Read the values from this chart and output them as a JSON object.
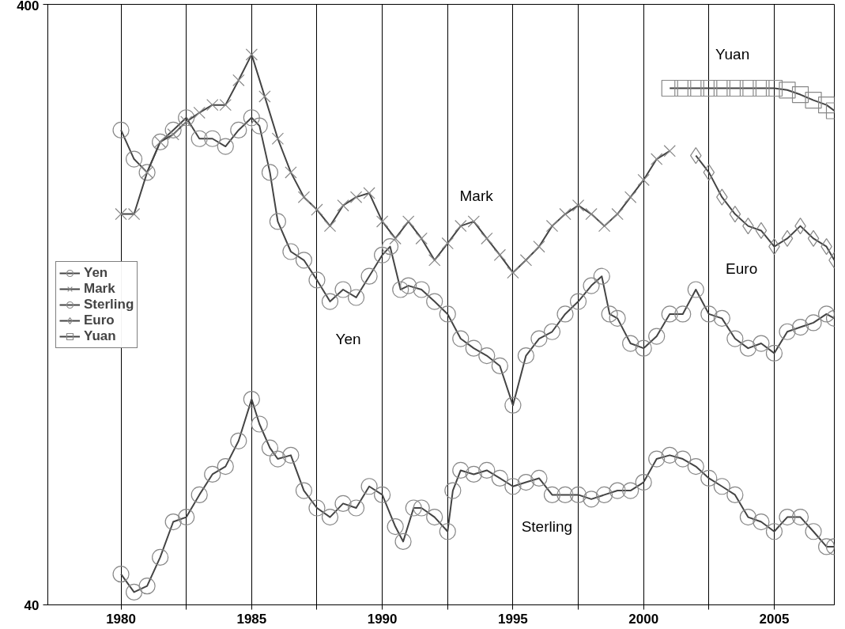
{
  "chart_data": {
    "type": "line",
    "xlim": [
      1977.2,
      2007.3
    ],
    "ylim": [
      40,
      400
    ],
    "log": true,
    "grid": "x",
    "legend": "left",
    "line_style": "solid",
    "xticks": [
      1980,
      {
        "value": 1982.5,
        "label": null
      },
      1985,
      {
        "value": 1987.5,
        "label": null
      },
      1990,
      {
        "value": 1992.5,
        "label": null
      },
      1995,
      {
        "value": 1997.5,
        "label": null
      },
      2000,
      {
        "value": 2002.5,
        "label": null
      },
      2005
    ],
    "yticks": [
      40,
      400
    ],
    "series": [
      {
        "name": "Yen",
        "color": "#444444",
        "marker": "circle",
        "x": [
          1980,
          1980.5,
          1981,
          1981.5,
          1982,
          1982.5,
          1983,
          1983.5,
          1984,
          1984.5,
          1985,
          1985.3,
          1985.7,
          1986,
          1986.5,
          1987,
          1987.5,
          1988,
          1988.5,
          1989,
          1989.5,
          1990,
          1990.3,
          1990.7,
          1991,
          1991.5,
          1992,
          1992.5,
          1993,
          1993.5,
          1994,
          1994.5,
          1995,
          1995.5,
          1996,
          1996.5,
          1997,
          1997.5,
          1998,
          1998.4,
          1998.7,
          1999,
          1999.5,
          2000,
          2000.5,
          2001,
          2001.5,
          2002,
          2002.5,
          2003,
          2003.5,
          2004,
          2004.5,
          2005,
          2005.5,
          2006,
          2006.5,
          2007,
          2007.3
        ],
        "values": [
          247,
          221,
          210,
          236,
          247,
          259,
          239,
          239,
          232,
          247,
          259,
          251,
          210,
          174,
          155,
          150,
          139,
          128,
          134,
          130,
          141,
          153,
          158,
          134,
          136,
          134,
          128,
          122,
          111,
          107,
          104,
          100,
          86,
          104,
          111,
          114,
          122,
          128,
          136,
          141,
          122,
          120,
          109,
          107,
          112,
          122,
          122,
          134,
          122,
          120,
          111,
          107,
          109,
          105,
          114,
          116,
          118,
          122,
          120
        ]
      },
      {
        "name": "Mark",
        "color": "#444444",
        "marker": "cross",
        "x": [
          1980,
          1980.5,
          1981,
          1981.5,
          1982,
          1982.5,
          1983,
          1983.5,
          1984,
          1984.5,
          1985,
          1985.5,
          1986,
          1986.5,
          1987,
          1987.5,
          1988,
          1988.5,
          1989,
          1989.5,
          1990,
          1990.5,
          1991,
          1991.5,
          1992,
          1992.5,
          1993,
          1993.5,
          1994,
          1994.5,
          1995,
          1995.5,
          1996,
          1996.5,
          1997,
          1997.5,
          1998,
          1998.5,
          1999,
          1999.5,
          2000,
          2000.5,
          2001
        ],
        "values": [
          179,
          179,
          210,
          236,
          243,
          255,
          264,
          272,
          272,
          299,
          330,
          281,
          239,
          210,
          191,
          182,
          171,
          185,
          191,
          194,
          174,
          163,
          174,
          163,
          150,
          160,
          171,
          174,
          163,
          153,
          143,
          150,
          158,
          171,
          179,
          185,
          179,
          171,
          179,
          191,
          204,
          221,
          228
        ]
      },
      {
        "name": "Sterling",
        "color": "#444444",
        "marker": "circle",
        "x": [
          1980,
          1980.5,
          1981,
          1981.5,
          1982,
          1982.5,
          1983,
          1983.5,
          1984,
          1984.5,
          1985,
          1985.3,
          1985.7,
          1986,
          1986.5,
          1987,
          1987.5,
          1988,
          1988.5,
          1989,
          1989.5,
          1990,
          1990.5,
          1990.8,
          1991.2,
          1991.5,
          1992,
          1992.5,
          1992.7,
          1993,
          1993.5,
          1994,
          1994.5,
          1995,
          1995.5,
          1996,
          1996.5,
          1997,
          1997.5,
          1998,
          1998.5,
          1999,
          1999.5,
          2000,
          2000.5,
          2001,
          2001.5,
          2002,
          2002.5,
          2003,
          2003.5,
          2004,
          2004.5,
          2005,
          2005.5,
          2006,
          2006.5,
          2007,
          2007.3
        ],
        "values": [
          45,
          42,
          43,
          48,
          55,
          56,
          61,
          66,
          68,
          75,
          88,
          80,
          73,
          70,
          71,
          62,
          58,
          56,
          59,
          58,
          63,
          61,
          54,
          51,
          58,
          58,
          56,
          53,
          62,
          67,
          66,
          67,
          65,
          63,
          64,
          65,
          61,
          61,
          61,
          60,
          61,
          62,
          62,
          64,
          70,
          71,
          70,
          68,
          65,
          63,
          61,
          56,
          55,
          53,
          56,
          56,
          53,
          50,
          50
        ]
      },
      {
        "name": "Euro",
        "color": "#444444",
        "marker": "diamond",
        "x": [
          2002,
          2002.5,
          2003,
          2003.5,
          2004,
          2004.5,
          2005,
          2005.5,
          2006,
          2006.5,
          2007,
          2007.3
        ],
        "values": [
          224,
          210,
          191,
          179,
          171,
          168,
          158,
          163,
          171,
          163,
          158,
          150
        ]
      },
      {
        "name": "Yuan",
        "color": "#444444",
        "marker": "square",
        "x": [
          2001,
          2001.5,
          2002,
          2002.5,
          2003,
          2003.5,
          2004,
          2004.5,
          2005,
          2005.5,
          2006,
          2006.5,
          2007,
          2007.3
        ],
        "values": [
          290,
          290,
          290,
          290,
          290,
          290,
          290,
          290,
          290,
          288,
          283,
          277,
          272,
          266
        ]
      }
    ],
    "annotations": [
      "Mark",
      "Yen",
      "Sterling",
      "Euro",
      "Yuan"
    ]
  }
}
